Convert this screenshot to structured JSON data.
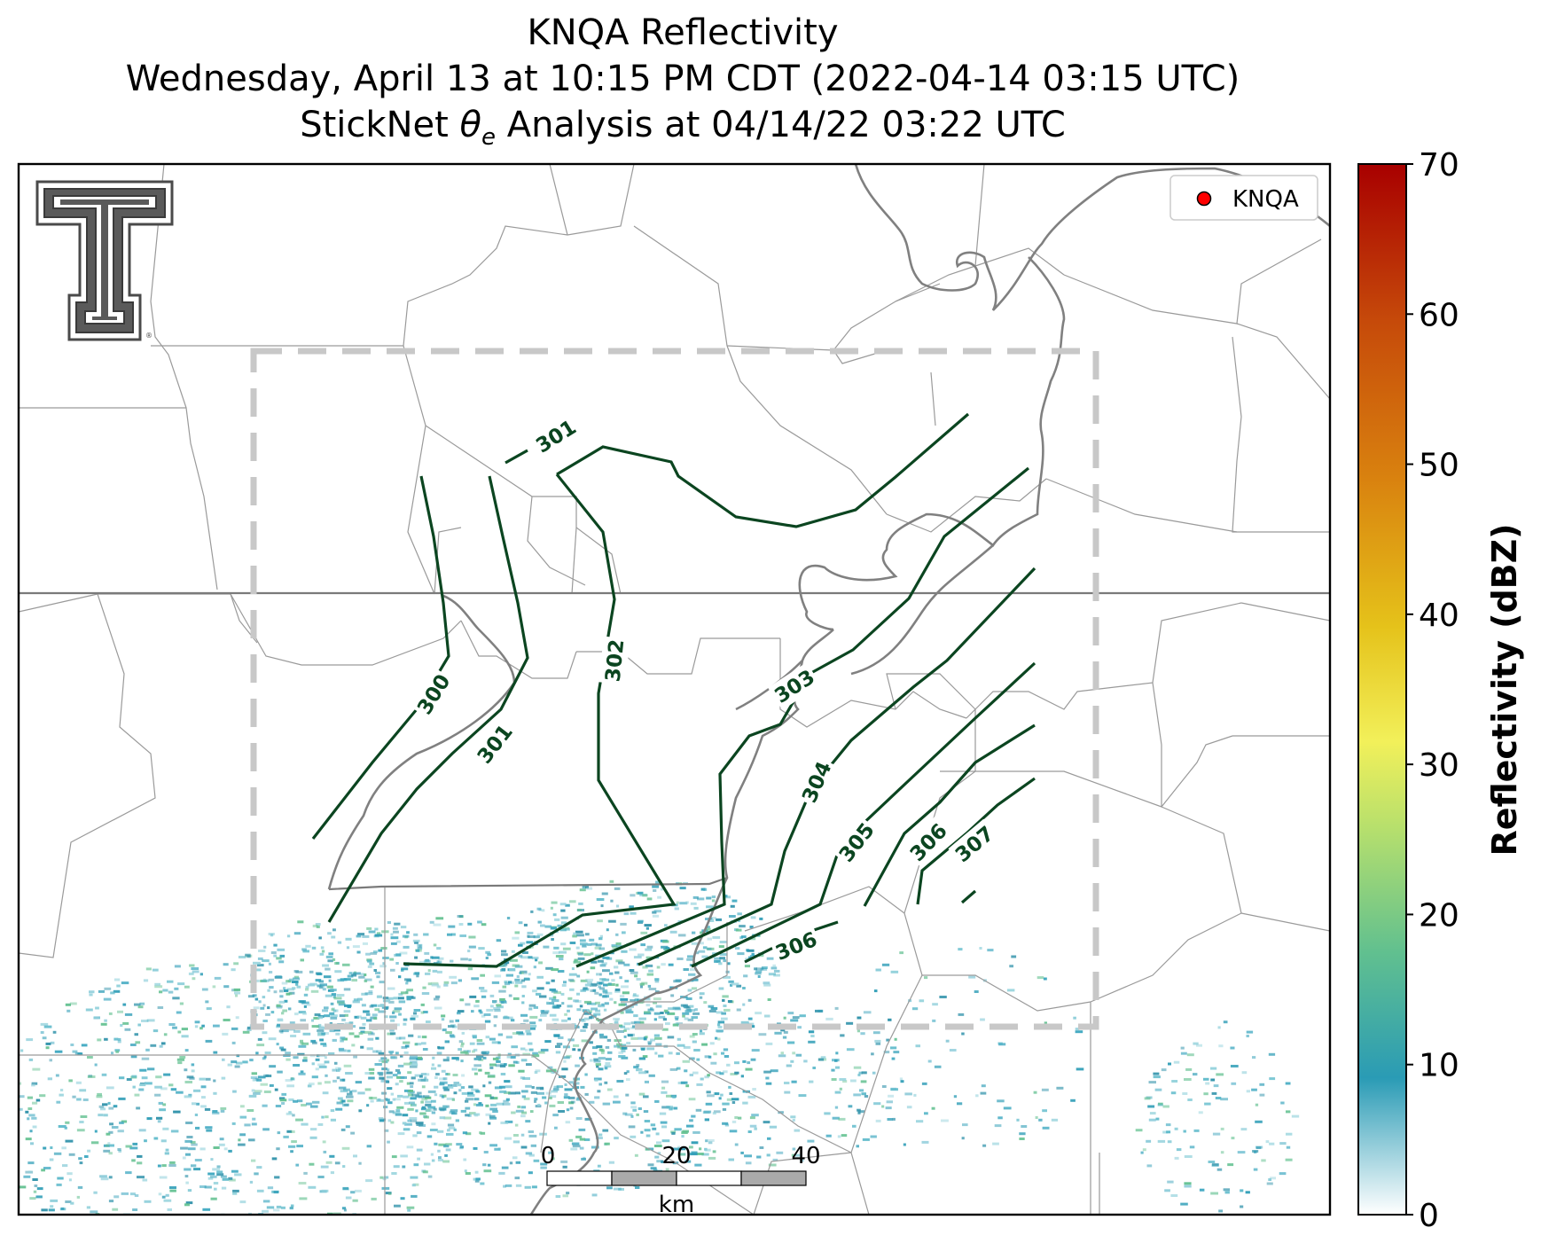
{
  "title": {
    "line1": "KNQA Reflectivity",
    "line2": "Wednesday, April 13 at 10:15 PM CDT (2022-04-14 03:15 UTC)",
    "line3_prefix": "StickNet ",
    "line3_symbol": "θ",
    "line3_sub": "e",
    "line3_suffix": " Analysis at 04/14/22 03:22 UTC"
  },
  "legend": {
    "label": "KNQA",
    "marker_color": "#ff0000"
  },
  "colorbar": {
    "label": "Reflectivity (dBZ)",
    "ticks": [
      "0",
      "10",
      "20",
      "30",
      "40",
      "50",
      "60",
      "70"
    ],
    "range": [
      0,
      70
    ],
    "stops": [
      "#ffffff",
      "#2a9bb5",
      "#61c08f",
      "#b8e06c",
      "#f2f05a",
      "#e5c21a",
      "#d9820f",
      "#c64a0a",
      "#a80000"
    ]
  },
  "scale_bar": {
    "ticks": [
      "0",
      "20",
      "40"
    ],
    "unit": "km"
  },
  "contours": {
    "color": "#0b4520",
    "labels": [
      "301",
      "300",
      "301",
      "302",
      "303",
      "304",
      "305",
      "306",
      "307",
      "306"
    ]
  },
  "colors": {
    "state_border": "#7a7a7a",
    "county_line": "#9a9a9a",
    "river": "#808080",
    "domain_box": "#c8c8c8",
    "echo": "#2a9bb5"
  },
  "logo": "texas-tech-double-t-logo"
}
